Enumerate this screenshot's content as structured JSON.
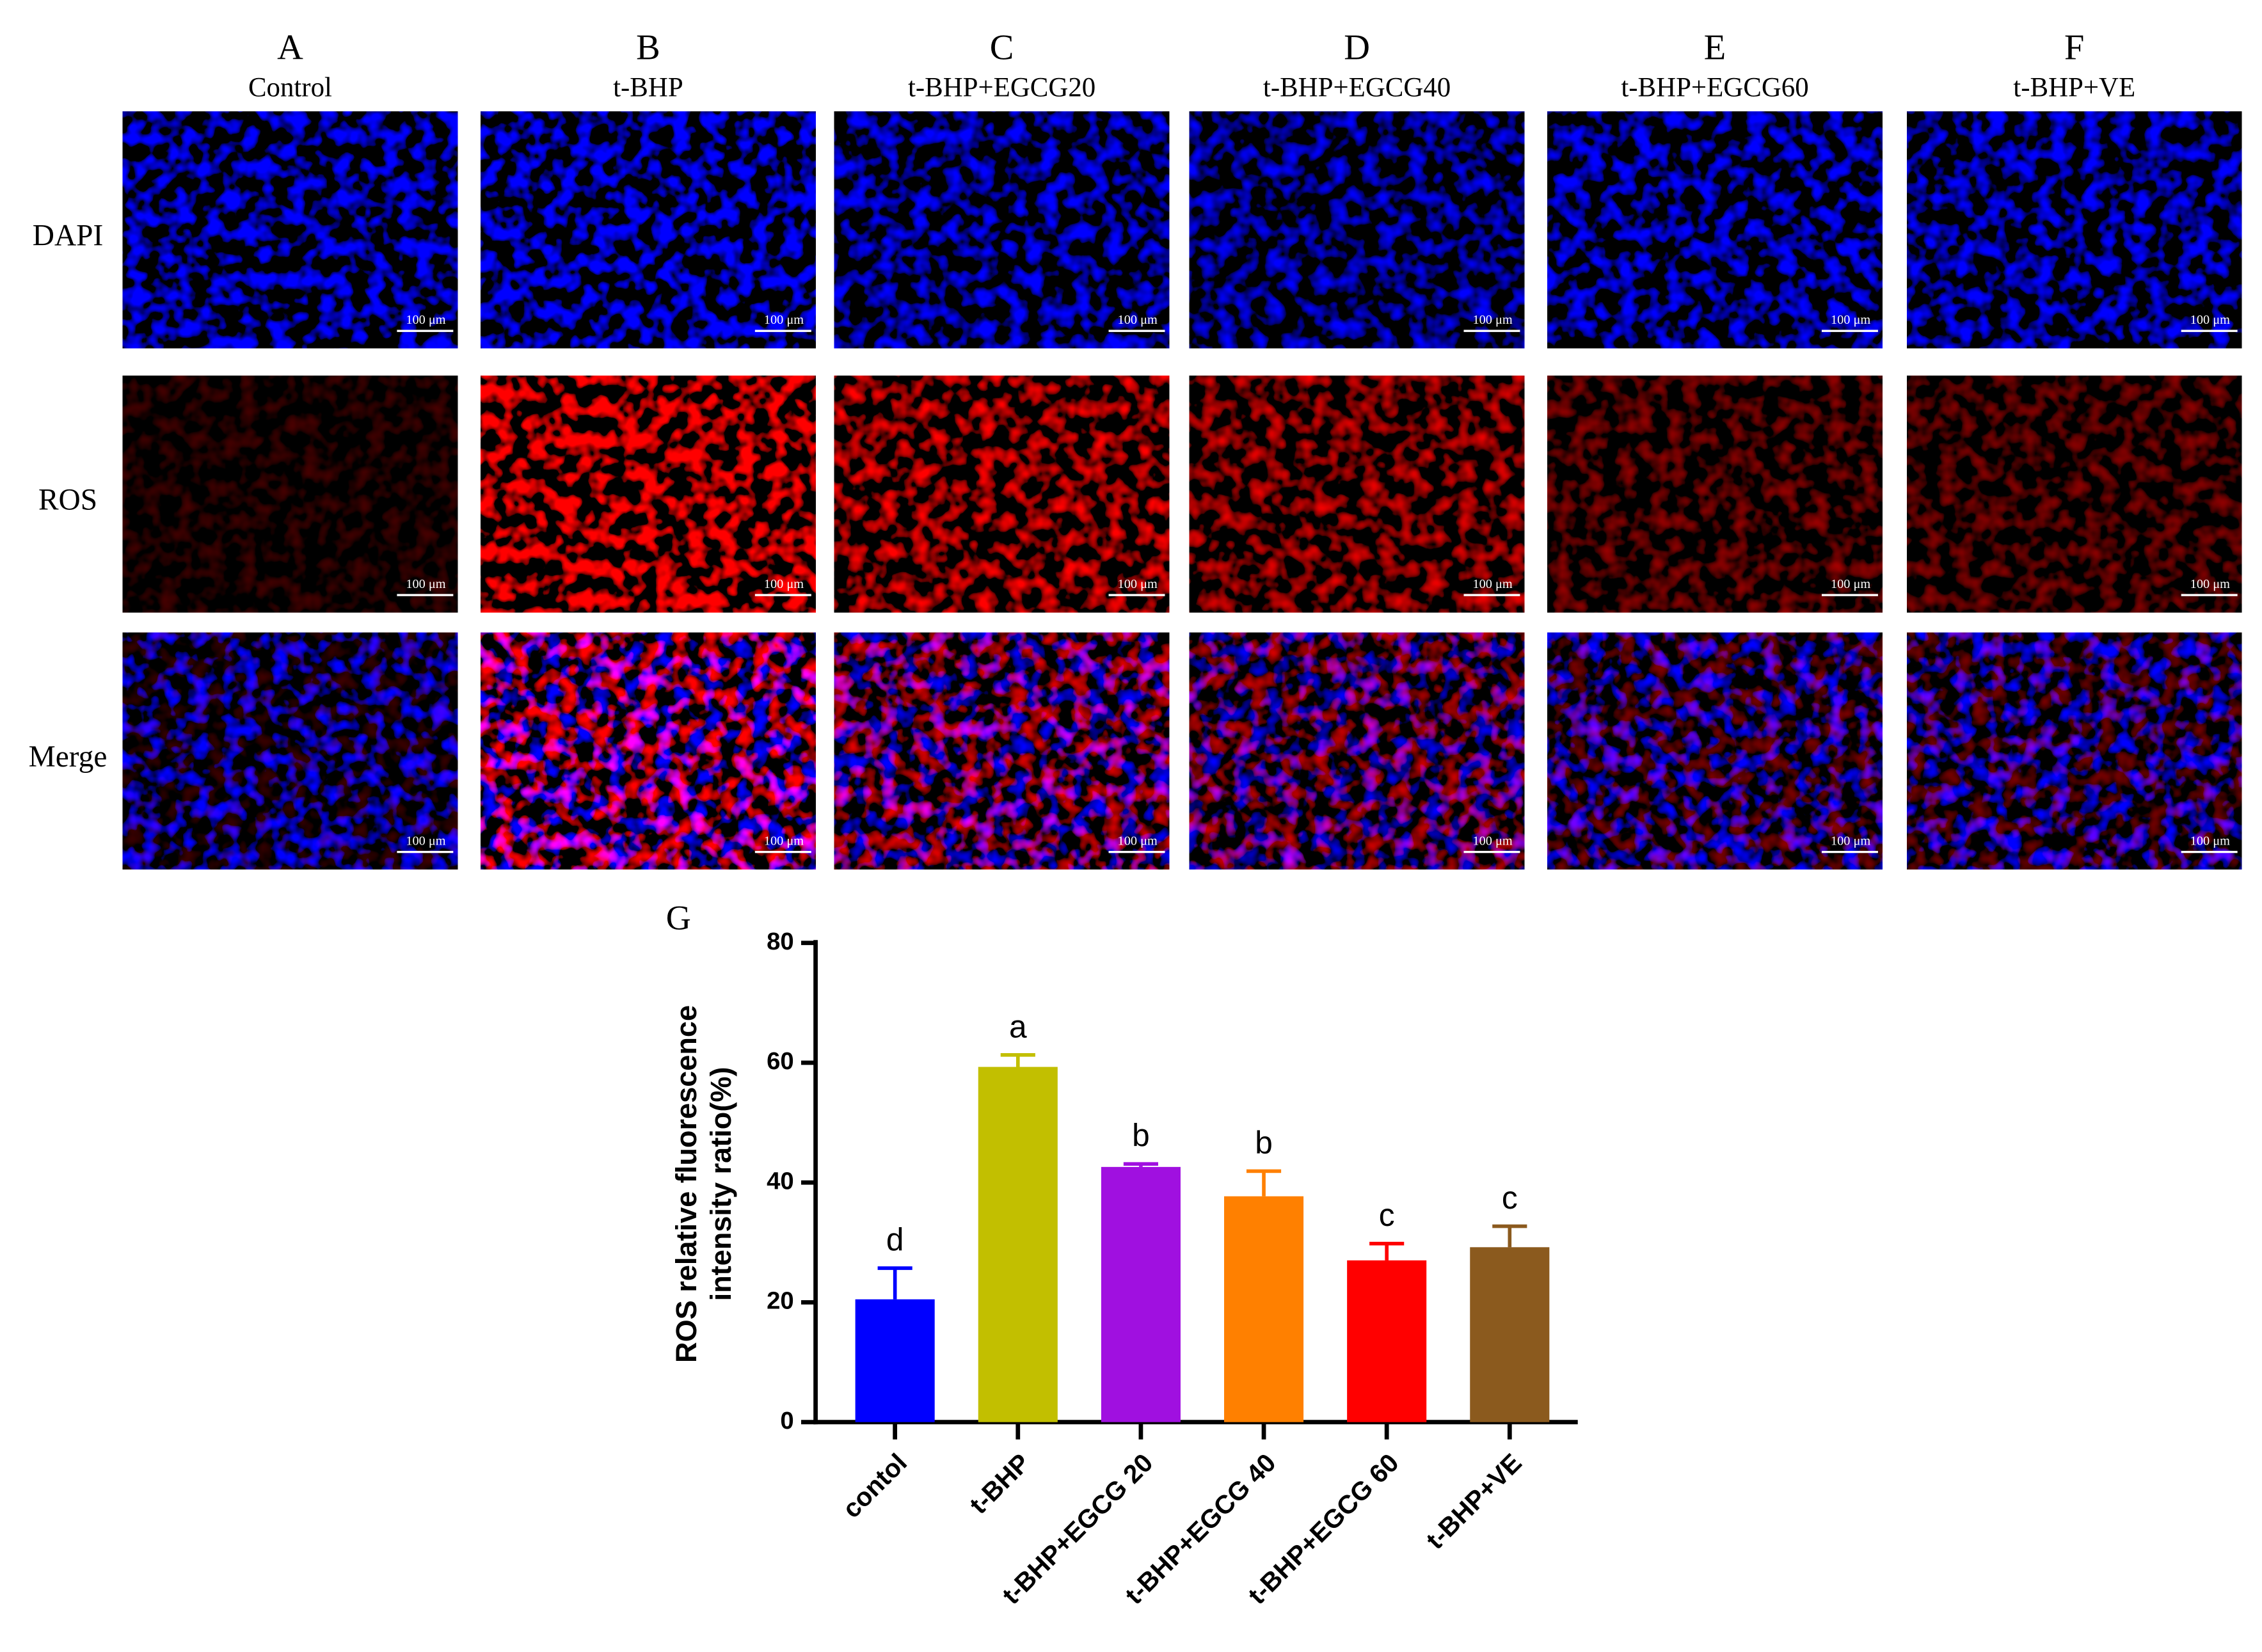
{
  "figure": {
    "columns": [
      {
        "letter": "A",
        "label": "Control"
      },
      {
        "letter": "B",
        "label": "t-BHP"
      },
      {
        "letter": "C",
        "label": "t-BHP+EGCG20"
      },
      {
        "letter": "D",
        "label": "t-BHP+EGCG40"
      },
      {
        "letter": "E",
        "label": "t-BHP+EGCG60"
      },
      {
        "letter": "F",
        "label": "t-BHP+VE"
      }
    ],
    "rows": [
      "DAPI",
      "ROS",
      "Merge"
    ],
    "scale_bar": "100 μm"
  },
  "chart_data": {
    "type": "bar",
    "panel_label": "G",
    "ylabel": [
      "ROS relative fluorescence",
      "intensity ratio(%)"
    ],
    "categories": [
      "contol",
      "t-BHP",
      "t-BHP+EGCG 20",
      "t-BHP+EGCG 40",
      "t-BHP+EGCG 60",
      "t-BHP+VE"
    ],
    "values": [
      20.5,
      59.3,
      42.6,
      37.7,
      27.0,
      29.2
    ],
    "errors": [
      5.2,
      2.0,
      0.5,
      4.2,
      2.8,
      3.5
    ],
    "annotations": [
      "d",
      "a",
      "b",
      "b",
      "c",
      "c"
    ],
    "colors": [
      "#0000ff",
      "#c2bf00",
      "#a010e0",
      "#ff8000",
      "#ff0000",
      "#8b5a1e"
    ],
    "ylim": [
      0,
      80
    ],
    "yticks": [
      0,
      20,
      40,
      60,
      80
    ]
  }
}
